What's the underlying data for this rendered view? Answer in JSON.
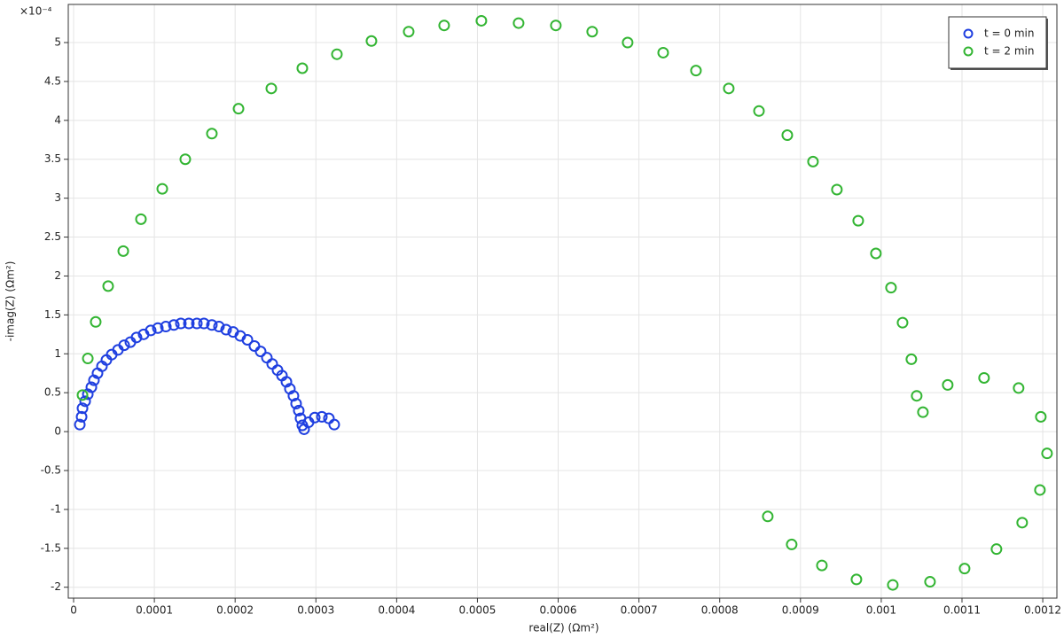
{
  "chart_data": {
    "type": "scatter",
    "x_label": "real(Z) (Ωm²)",
    "y_label": "-imag(Z) (Ωm²)",
    "y_exponent_label": "×10⁻⁴",
    "xlim": [
      -6.6e-06,
      0.0012175
    ],
    "ylim": [
      -2.14,
      5.49
    ],
    "xticks": [
      0,
      0.0001,
      0.0002,
      0.0003,
      0.0004,
      0.0005,
      0.0006,
      0.0007,
      0.0008,
      0.0009,
      0.001,
      0.0011,
      0.0012
    ],
    "yticks": [
      -2,
      -1.5,
      -1,
      -0.5,
      0,
      0.5,
      1,
      1.5,
      2,
      2.5,
      3,
      3.5,
      4,
      4.5,
      5
    ],
    "grid": true,
    "legend": "upper right",
    "series": [
      {
        "name": "t = 0 min",
        "color": "#1f3fe0",
        "x": [
          7.7e-06,
          9.9e-06,
          1.1e-05,
          1.43e-05,
          1.76e-05,
          2.2e-05,
          2.52e-05,
          2.96e-05,
          3.51e-05,
          4.06e-05,
          4.72e-05,
          5.49e-05,
          6.26e-05,
          7.03e-05,
          7.79e-05,
          8.67e-05,
          9.55e-05,
          0.0001043,
          0.0001142,
          0.0001241,
          0.0001328,
          0.0001427,
          0.0001526,
          0.0001614,
          0.0001712,
          0.00018,
          0.0001888,
          0.0001976,
          0.0002064,
          0.0002152,
          0.0002239,
          0.0002316,
          0.0002393,
          0.0002459,
          0.0002525,
          0.000258,
          0.0002635,
          0.0002678,
          0.0002722,
          0.0002755,
          0.0002788,
          0.000281,
          0.0002832,
          0.0002854,
          0.0002909,
          0.0002986,
          0.0003074,
          0.0003161,
          0.0003227
        ],
        "values": [
          0.09,
          0.19,
          0.3,
          0.39,
          0.48,
          0.57,
          0.66,
          0.75,
          0.84,
          0.92,
          0.99,
          1.05,
          1.11,
          1.15,
          1.21,
          1.25,
          1.3,
          1.33,
          1.35,
          1.37,
          1.39,
          1.39,
          1.39,
          1.39,
          1.37,
          1.35,
          1.31,
          1.28,
          1.23,
          1.18,
          1.1,
          1.03,
          0.95,
          0.87,
          0.79,
          0.72,
          0.64,
          0.55,
          0.46,
          0.36,
          0.27,
          0.17,
          0.08,
          0.03,
          0.12,
          0.18,
          0.19,
          0.17,
          0.09
        ]
      },
      {
        "name": "t = 2 min",
        "color": "#33b533",
        "x": [
          1.1e-05,
          1.76e-05,
          2.74e-05,
          4.28e-05,
          6.15e-05,
          8.34e-05,
          0.0001098,
          0.0001383,
          0.0001712,
          0.0002042,
          0.0002448,
          0.0002832,
          0.000326,
          0.0003688,
          0.0004149,
          0.0004588,
          0.0005049,
          0.000551,
          0.0005971,
          0.0006421,
          0.000686,
          0.00073,
          0.0007706,
          0.0008112,
          0.0008486,
          0.0008837,
          0.0009155,
          0.0009451,
          0.0009715,
          0.0009934,
          0.0010121,
          0.0010264,
          0.0010373,
          0.0010439,
          0.0010516,
          0.0010823,
          0.0011273,
          0.0011701,
          0.0011976,
          0.0012053,
          0.0011965,
          0.0011745,
          0.0011427,
          0.0011032,
          0.0010604,
          0.0010143,
          0.0009693,
          0.0009265,
          0.0008891,
          0.0008595
        ],
        "values": [
          0.47,
          0.94,
          1.41,
          1.87,
          2.32,
          2.73,
          3.12,
          3.5,
          3.83,
          4.15,
          4.41,
          4.67,
          4.85,
          5.02,
          5.14,
          5.22,
          5.28,
          5.25,
          5.22,
          5.14,
          5.0,
          4.87,
          4.64,
          4.41,
          4.12,
          3.81,
          3.47,
          3.11,
          2.71,
          2.29,
          1.85,
          1.4,
          0.93,
          0.46,
          0.25,
          0.6,
          0.69,
          0.56,
          0.19,
          -0.28,
          -0.75,
          -1.17,
          -1.51,
          -1.76,
          -1.93,
          -1.97,
          -1.9,
          -1.72,
          -1.45,
          -1.09
        ]
      }
    ]
  }
}
